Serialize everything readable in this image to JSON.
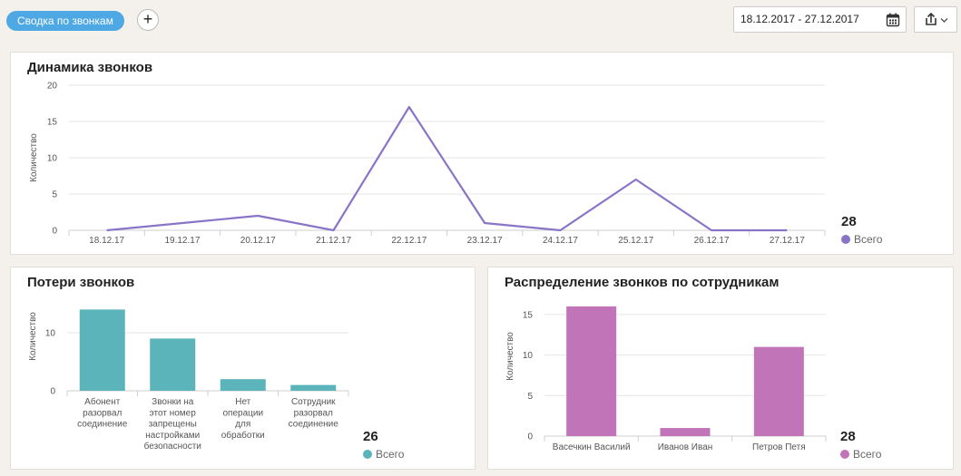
{
  "toolbar": {
    "tab_label": "Сводка по звонкам",
    "add_label": "+",
    "date_range": "18.12.2017 - 27.12.2017"
  },
  "colors": {
    "accent": "#4ea8e4",
    "line": "#8a74c8",
    "teal": "#5ab4ba",
    "magenta": "#c174b8"
  },
  "cards": {
    "dynamics": {
      "title": "Динамика звонков",
      "total": "28",
      "legend": "Всего"
    },
    "losses": {
      "title": "Потери звонков",
      "total": "26",
      "legend": "Всего"
    },
    "distribution": {
      "title": "Распределение звонков по сотрудникам",
      "total": "28",
      "legend": "Всего"
    }
  },
  "chart_data": [
    {
      "type": "line",
      "title": "Динамика звонков",
      "ylabel": "Количество",
      "x": [
        "18.12.17",
        "19.12.17",
        "20.12.17",
        "21.12.17",
        "22.12.17",
        "23.12.17",
        "24.12.17",
        "25.12.17",
        "26.12.17",
        "27.12.17"
      ],
      "series": [
        {
          "name": "Всего",
          "values": [
            0,
            1,
            2,
            0,
            17,
            1,
            0,
            7,
            0,
            0
          ]
        }
      ],
      "ylim": [
        0,
        20
      ],
      "yticks": [
        0,
        5,
        10,
        15,
        20
      ],
      "grid": true,
      "legend": "right"
    },
    {
      "type": "bar",
      "title": "Потери звонков",
      "ylabel": "Количество",
      "categories": [
        [
          "Абонент",
          "разорвал",
          "соединение"
        ],
        [
          "Звонки на",
          "этот номер",
          "запрещены",
          "настройками",
          "безопасности"
        ],
        [
          "Нет",
          "операции",
          "для",
          "обработки"
        ],
        [
          "Сотрудник",
          "разорвал",
          "соединение"
        ]
      ],
      "series": [
        {
          "name": "Всего",
          "values": [
            14,
            9,
            2,
            1
          ]
        }
      ],
      "ylim": [
        0,
        15
      ],
      "yticks": [
        0,
        10
      ],
      "grid": true,
      "legend": "right"
    },
    {
      "type": "bar",
      "title": "Распределение звонков по сотрудникам",
      "ylabel": "Количество",
      "categories": [
        "Васечкин Василий",
        "Иванов Иван",
        "Петров Петя"
      ],
      "series": [
        {
          "name": "Всего",
          "values": [
            16,
            1,
            11
          ]
        }
      ],
      "ylim": [
        0,
        17
      ],
      "yticks": [
        0,
        5,
        10,
        15
      ],
      "grid": true,
      "legend": "right"
    }
  ]
}
